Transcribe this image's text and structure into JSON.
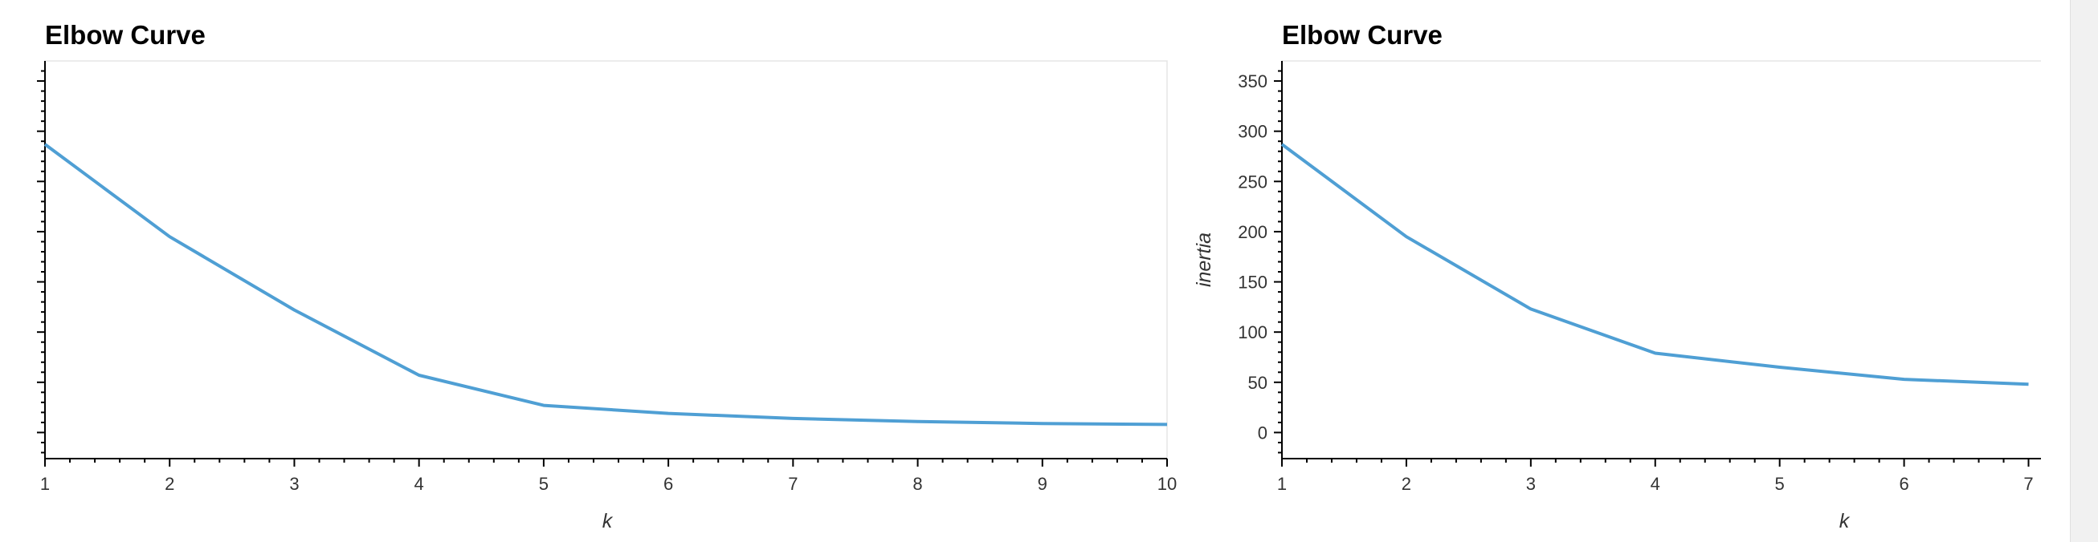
{
  "chart_data": [
    {
      "type": "line",
      "title": "Elbow Curve",
      "xlabel": "k",
      "ylabel": "",
      "x": [
        1,
        2,
        3,
        4,
        5,
        6,
        7,
        8,
        9,
        10
      ],
      "series": [
        {
          "values": [
            287,
            195,
            122,
            57,
            27,
            19,
            14,
            11,
            9,
            8
          ]
        }
      ],
      "xlim": [
        1,
        10
      ],
      "ylim": [
        -26,
        370
      ],
      "xticks": [
        1,
        2,
        3,
        4,
        5,
        6,
        7,
        8,
        9,
        10
      ],
      "yticks": [],
      "grid": false,
      "line_color": "#4f9fd4"
    },
    {
      "type": "line",
      "title": "Elbow Curve",
      "xlabel": "k",
      "ylabel": "inertia",
      "x": [
        1,
        2,
        3,
        4,
        5,
        6,
        7
      ],
      "series": [
        {
          "values": [
            287,
            195,
            123,
            79,
            65,
            53,
            48
          ]
        }
      ],
      "xlim": [
        1,
        7.1
      ],
      "ylim": [
        -26,
        370
      ],
      "xticks": [
        1,
        2,
        3,
        4,
        5,
        6,
        7
      ],
      "yticks": [
        0,
        50,
        100,
        150,
        200,
        250,
        300,
        350
      ],
      "grid": false,
      "line_color": "#4f9fd4"
    }
  ]
}
